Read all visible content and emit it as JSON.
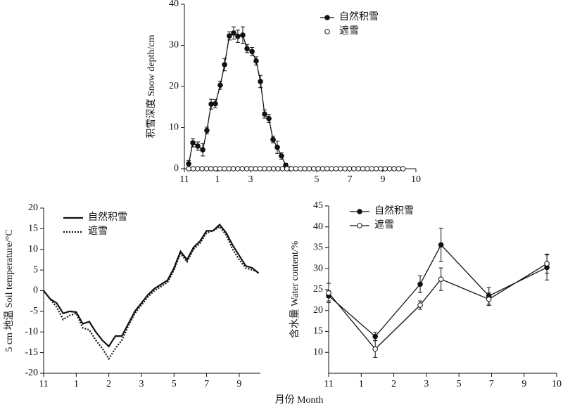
{
  "x_axis_label": "月份 Month",
  "chart_data": [
    {
      "type": "line",
      "ylabel": "积雪深度 Snow depth/cm",
      "xlim": [
        0,
        14
      ],
      "ylim": [
        0,
        40
      ],
      "xticks": [
        {
          "value": 0,
          "label": "11"
        },
        {
          "value": 2,
          "label": "1"
        },
        {
          "value": 4,
          "label": "3"
        },
        {
          "value": 8,
          "label": "5"
        },
        {
          "value": 10,
          "label": "7"
        },
        {
          "value": 12,
          "label": "9"
        },
        {
          "value": 14,
          "label": "10"
        }
      ],
      "yticks": [
        0,
        10,
        20,
        30,
        40
      ],
      "legend": "top-right",
      "series": [
        {
          "name": "自然积雪",
          "color": "#111111",
          "marker": "filled",
          "linestyle": "solid",
          "x": [
            0.26,
            0.51,
            0.81,
            1.11,
            1.36,
            1.62,
            1.87,
            2.17,
            2.43,
            2.72,
            2.98,
            3.23,
            3.53,
            3.79,
            4.09,
            4.34,
            4.6,
            4.85,
            5.11,
            5.36,
            5.62,
            5.87,
            6.13,
            6.43
          ],
          "values": [
            1.2,
            6.3,
            5.5,
            4.6,
            9.3,
            15.7,
            15.8,
            20.3,
            25.3,
            32.3,
            33,
            32.2,
            32.5,
            29.2,
            28.5,
            26.2,
            21.2,
            13.3,
            12.2,
            7.1,
            5.2,
            3.1,
            0.8,
            0
          ],
          "errors": [
            0.8,
            1,
            1,
            1.5,
            0.8,
            1.2,
            1,
            1,
            1.5,
            1,
            1.5,
            1.5,
            2,
            1,
            1,
            1,
            1.5,
            1,
            1,
            0.8,
            1.5,
            0.8,
            0.5,
            0
          ]
        },
        {
          "name": "遮雪",
          "color": "#111111",
          "marker": "open",
          "linestyle": "none",
          "x": [
            0.26,
            0.53,
            0.8,
            1.07,
            1.34,
            1.61,
            1.88,
            2.15,
            2.42,
            2.69,
            2.96,
            3.23,
            3.5,
            3.77,
            4.04,
            4.31,
            4.58,
            4.85,
            5.12,
            5.39,
            5.66,
            5.93,
            6.2,
            6.47,
            6.74,
            7.01,
            7.28,
            7.55,
            7.82,
            8.09,
            8.36,
            8.63,
            8.9,
            9.17,
            9.44,
            9.71,
            9.98,
            10.25,
            10.52,
            10.79,
            11.06,
            11.33,
            11.6,
            11.87,
            12.14,
            12.41,
            12.68,
            12.95,
            13.22
          ],
          "values": [
            0,
            0,
            0,
            0,
            0,
            0,
            0,
            0,
            0,
            0,
            0,
            0,
            0,
            0,
            0,
            0,
            0,
            0,
            0,
            0,
            0,
            0,
            0,
            0,
            0,
            0,
            0,
            0,
            0,
            0,
            0,
            0,
            0,
            0,
            0,
            0,
            0,
            0,
            0,
            0,
            0,
            0,
            0,
            0,
            0,
            0,
            0,
            0,
            0
          ]
        }
      ]
    },
    {
      "type": "line",
      "ylabel": "5 cm 地温 Soil temperature/°C",
      "xlim": [
        0,
        6.65
      ],
      "ylim": [
        -20,
        20
      ],
      "xticks": [
        {
          "value": 0,
          "label": "11"
        },
        {
          "value": 1,
          "label": "1"
        },
        {
          "value": 2,
          "label": "2"
        },
        {
          "value": 3,
          "label": "3"
        },
        {
          "value": 4,
          "label": "5"
        },
        {
          "value": 5,
          "label": "7"
        },
        {
          "value": 6,
          "label": "9"
        }
      ],
      "yticks": [
        -20,
        -15,
        -10,
        -5,
        0,
        5,
        10,
        15,
        20
      ],
      "legend": "top-left",
      "x": [
        0,
        0.2,
        0.4,
        0.6,
        0.8,
        1.0,
        1.2,
        1.4,
        1.6,
        1.8,
        2.0,
        2.2,
        2.4,
        2.6,
        2.8,
        3.0,
        3.2,
        3.4,
        3.6,
        3.8,
        4.0,
        4.2,
        4.4,
        4.6,
        4.8,
        5.0,
        5.2,
        5.4,
        5.6,
        5.8,
        6.0,
        6.2,
        6.4,
        6.6
      ],
      "series": [
        {
          "name": "自然积雪",
          "color": "#111111",
          "marker": "none",
          "linestyle": "solid",
          "values": [
            0,
            -2,
            -3,
            -5.5,
            -5,
            -5.2,
            -8,
            -7.5,
            -10,
            -12,
            -13.5,
            -11,
            -11,
            -8,
            -5,
            -3,
            -1,
            0.5,
            1.5,
            2.5,
            5.5,
            9.5,
            7.5,
            10.5,
            12,
            14.5,
            14.5,
            16,
            14,
            11,
            8.5,
            6,
            5.5,
            4.2
          ]
        },
        {
          "name": "遮雪",
          "color": "#111111",
          "marker": "none",
          "linestyle": "dotted",
          "values": [
            0,
            -2,
            -4,
            -7,
            -6,
            -5.5,
            -9,
            -9.5,
            -12,
            -14,
            -16.5,
            -14,
            -12,
            -8.5,
            -5.5,
            -3.5,
            -1.5,
            0,
            1,
            2,
            5,
            9,
            7,
            10,
            11.5,
            14,
            14.5,
            15.5,
            13.5,
            10,
            7.5,
            5.5,
            5,
            4.5
          ]
        }
      ]
    },
    {
      "type": "line",
      "ylabel": "含水量 Water content/%",
      "xlim": [
        0,
        7
      ],
      "ylim": [
        5,
        45
      ],
      "xticks": [
        {
          "value": 0,
          "label": "11"
        },
        {
          "value": 1,
          "label": "1"
        },
        {
          "value": 2,
          "label": "2"
        },
        {
          "value": 3,
          "label": "3"
        },
        {
          "value": 4,
          "label": "5"
        },
        {
          "value": 5,
          "label": "7"
        },
        {
          "value": 6,
          "label": "9"
        },
        {
          "value": 7,
          "label": "10"
        }
      ],
      "yticks": [
        10,
        15,
        20,
        25,
        30,
        35,
        40,
        45
      ],
      "legend": "top-left",
      "x": [
        0,
        1.43,
        2.81,
        3.45,
        4.92,
        6.7
      ],
      "series": [
        {
          "name": "自然积雪",
          "color": "#111111",
          "marker": "filled",
          "linestyle": "solid",
          "values": [
            23.5,
            13.8,
            26.3,
            35.7,
            23.5,
            30.3
          ],
          "errors": [
            1.2,
            1,
            2,
            4,
            2,
            3
          ]
        },
        {
          "name": "遮雪",
          "color": "#111111",
          "marker": "open",
          "linestyle": "solid",
          "values": [
            24.2,
            10.8,
            21.3,
            27.5,
            22.7,
            31.2
          ],
          "errors": [
            2.3,
            2,
            1,
            2.7,
            1.5,
            2.3
          ]
        }
      ]
    }
  ]
}
